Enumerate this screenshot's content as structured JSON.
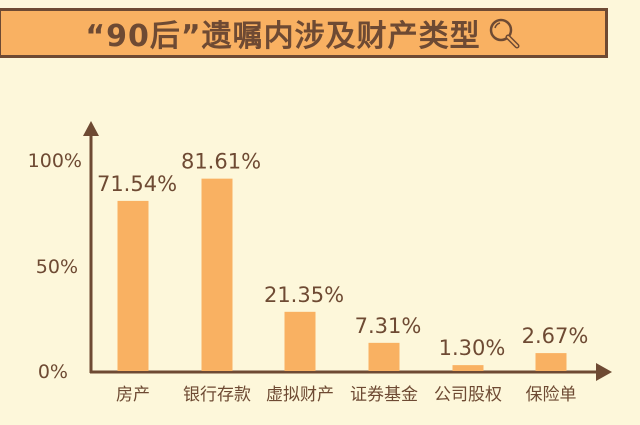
{
  "title": "“90后”遗嘱内涉及财产类型",
  "title_icon": "magnifier-icon",
  "colors": {
    "background": "#fdf7da",
    "bar": "#f9b162",
    "axis": "#6e4a33",
    "title_bar": "#f9b162"
  },
  "chart_data": {
    "type": "bar",
    "title": "“90后”遗嘱内涉及财产类型",
    "categories": [
      "房产",
      "银行存款",
      "虚拟财产",
      "证券基金",
      "公司股权",
      "保险单"
    ],
    "values": [
      71.54,
      81.61,
      21.35,
      7.31,
      1.3,
      2.67
    ],
    "value_labels": [
      "71.54%",
      "81.61%",
      "21.35%",
      "7.31%",
      "1.30%",
      "2.67%"
    ],
    "yticks": [
      "0%",
      "50%",
      "100%"
    ],
    "ylim": [
      0,
      100
    ],
    "xlabel": "",
    "ylabel": "",
    "grid": false
  }
}
